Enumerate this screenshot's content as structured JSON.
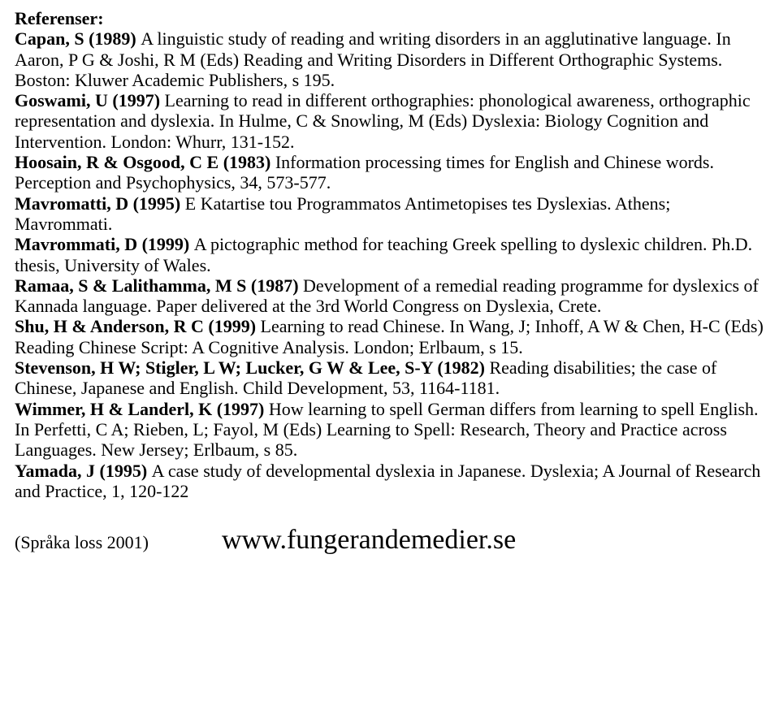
{
  "heading": "Referenser:",
  "references": [
    {
      "lead": "Capan, S (1989) ",
      "rest": "A linguistic study of reading and writing disorders in an agglutinative language. In Aaron, P G & Joshi, R M (Eds) Reading and Writing Disorders in Different Orthographic Systems. Boston: Kluwer Academic Publishers, s 195."
    },
    {
      "lead": "Goswami, U (1997) ",
      "rest": "Learning to read in different orthographies: phonological awareness, orthographic representation and dyslexia. In Hulme, C & Snowling, M (Eds) Dyslexia: Biology Cognition and Intervention. London: Whurr, 131-152."
    },
    {
      "lead": "Hoosain, R & Osgood, C E (1983) ",
      "rest": "Information processing times for English and Chinese words. Perception and Psychophysics, 34, 573-577."
    },
    {
      "lead": "Mavromatti, D (1995) ",
      "rest": "E Katartise tou Programmatos Antimetopises tes Dyslexias. Athens; Mavrommati."
    },
    {
      "lead": "Mavrommati, D (1999) ",
      "rest": "A pictographic method for teaching Greek spelling to dyslexic children. Ph.D. thesis, University of Wales."
    },
    {
      "lead": "Ramaa, S & Lalithamma, M S (1987) ",
      "rest": "Development of a remedial reading programme for dyslexics of Kannada language. Paper delivered at the 3rd World Congress on Dyslexia, Crete."
    },
    {
      "lead": "Shu, H & Anderson, R C (1999) ",
      "rest": "Learning to read Chinese. In Wang, J; Inhoff, A W & Chen, H-C (Eds) Reading Chinese Script: A Cognitive Analysis. London; Erlbaum, s 15."
    },
    {
      "lead": "Stevenson, H W; Stigler, L W; Lucker, G W & Lee, S-Y (1982) ",
      "rest": "Reading disabilities; the case of Chinese, Japanese and English. Child Development, 53, 1164-1181."
    },
    {
      "lead": "Wimmer, H & Landerl, K (1997) ",
      "rest": "How learning to spell German differs from learning to spell English. In Perfetti, C A; Rieben, L; Fayol, M (Eds) Learning to Spell: Research, Theory and Practice across Languages. New Jersey; Erlbaum, s 85."
    },
    {
      "lead": "Yamada, J (1995) ",
      "rest": "A case study of developmental dyslexia in Japanese. Dyslexia; A Journal of Research and Practice, 1, 120-122"
    }
  ],
  "footer": {
    "note": "(Språka loss 2001)",
    "url": "www.fungerandemedier.se"
  }
}
